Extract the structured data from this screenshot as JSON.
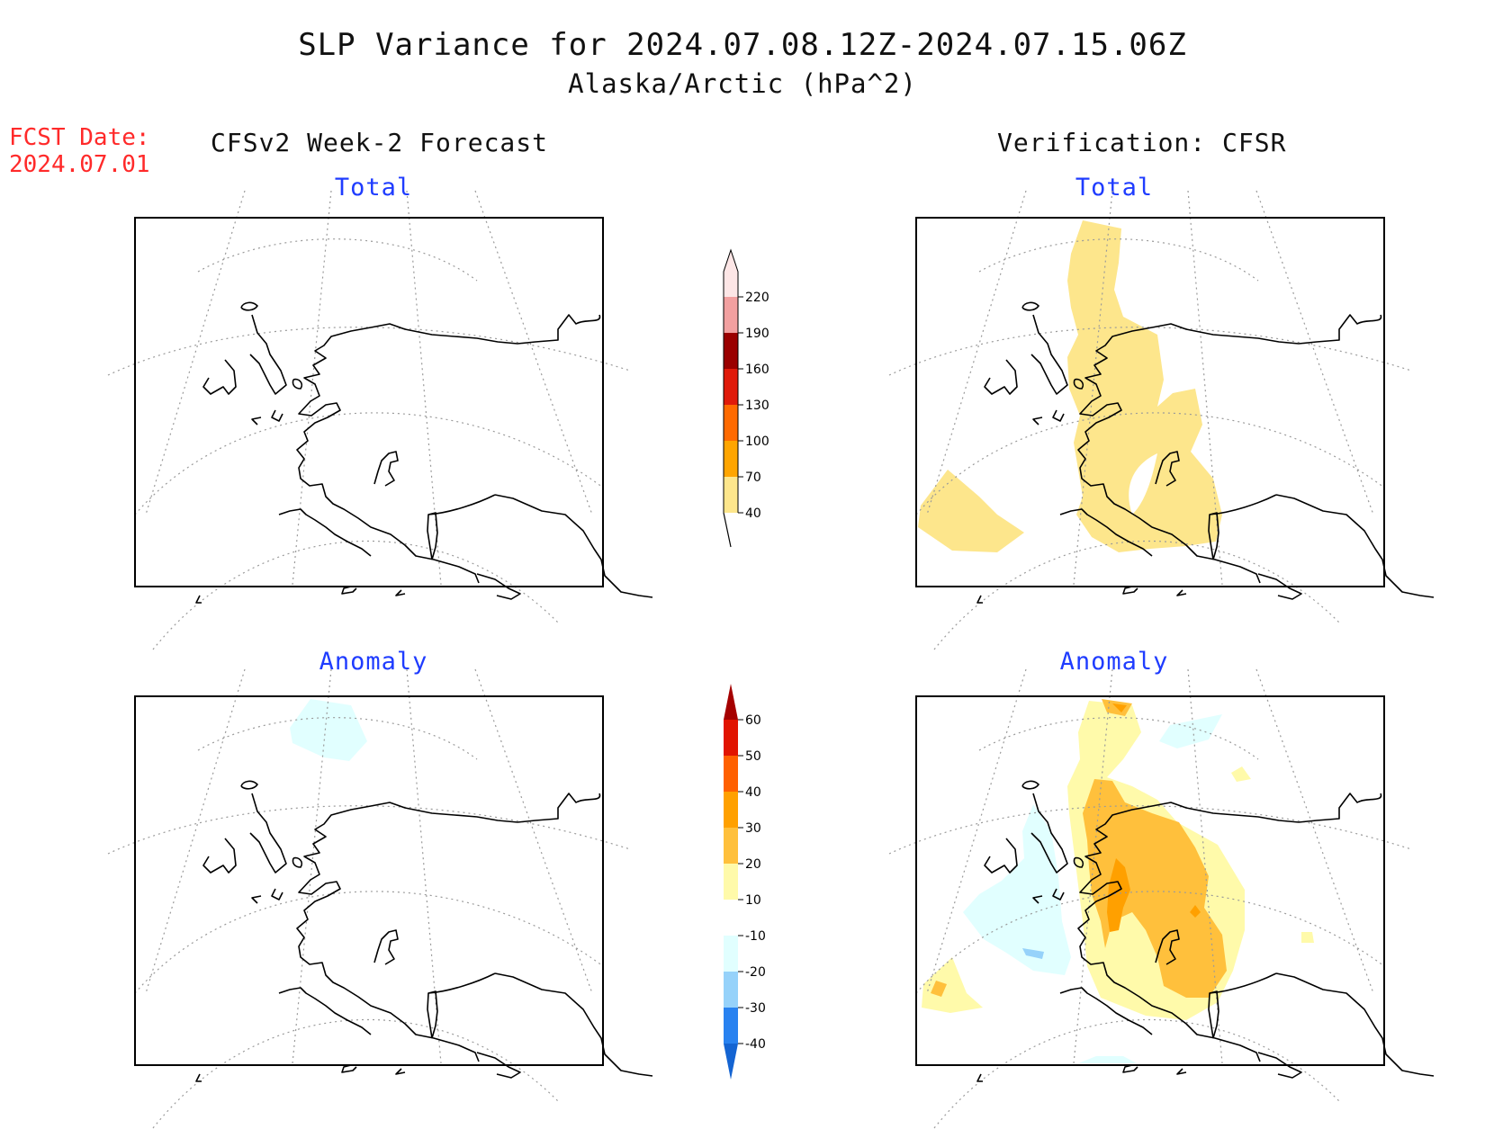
{
  "title": "SLP Variance for 2024.07.08.12Z-2024.07.15.06Z",
  "subtitle": "Alaska/Arctic (hPa^2)",
  "forecast_date": {
    "label": "FCST Date:",
    "value": "2024.07.01"
  },
  "columns": {
    "left": "CFSv2 Week-2 Forecast",
    "right": "Verification: CFSR"
  },
  "panels": {
    "top_left": "Total",
    "top_right": "Total",
    "bottom_left": "Anomaly",
    "bottom_right": "Anomaly"
  },
  "colorbars": {
    "total": {
      "labels": [
        "40",
        "70",
        "100",
        "130",
        "160",
        "190",
        "220"
      ],
      "colors": [
        "#fde68c",
        "#ffa500",
        "#ff6a00",
        "#e01a0a",
        "#9a0000",
        "#f2a0a0",
        "#fde6e6"
      ]
    },
    "anomaly": {
      "labels": [
        "-40",
        "-30",
        "-20",
        "-10",
        "10",
        "20",
        "30",
        "40",
        "50",
        "60"
      ],
      "colors": [
        "#1464d2",
        "#2882f0",
        "#96d2fa",
        "#e1ffff",
        "#ffffff",
        "#fffaaa",
        "#ffc03c",
        "#ffa000",
        "#ff6000",
        "#e11400",
        "#a50000"
      ]
    }
  }
}
